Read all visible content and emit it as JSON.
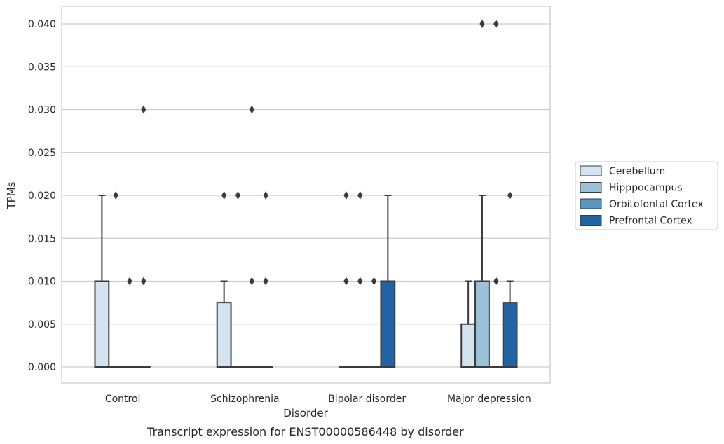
{
  "chart_data": {
    "type": "box",
    "caption": "Transcript expression for ENST00000586448 by disorder",
    "xlabel": "Disorder",
    "ylabel": "TPMs",
    "categories": [
      "Control",
      "Schizophrenia",
      "Bipolar disorder",
      "Major depression"
    ],
    "ylim": [
      -0.002,
      0.042
    ],
    "yticks": [
      0.0,
      0.005,
      0.01,
      0.015,
      0.02,
      0.025,
      0.03,
      0.035,
      0.04
    ],
    "ytick_labels": [
      "0.000",
      "0.005",
      "0.010",
      "0.015",
      "0.020",
      "0.025",
      "0.030",
      "0.035",
      "0.040"
    ],
    "grid": "horizontal",
    "legend_position": "right",
    "series": [
      {
        "name": "Cerebellum",
        "color": "#d4e3f0",
        "boxes": [
          {
            "q1": 0.0,
            "median": 0.0,
            "q3": 0.01,
            "whisker_low": 0.0,
            "whisker_high": 0.02,
            "outliers": []
          },
          {
            "q1": 0.0,
            "median": 0.0,
            "q3": 0.0075,
            "whisker_low": 0.0,
            "whisker_high": 0.01,
            "outliers": [
              0.02
            ]
          },
          {
            "q1": 0.0,
            "median": 0.0,
            "q3": 0.0,
            "whisker_low": 0.0,
            "whisker_high": 0.0,
            "outliers": [
              0.01,
              0.02
            ]
          },
          {
            "q1": 0.0,
            "median": 0.0,
            "q3": 0.005,
            "whisker_low": 0.0,
            "whisker_high": 0.01,
            "outliers": []
          }
        ]
      },
      {
        "name": "Hipppocampus",
        "color": "#9cc2d9",
        "boxes": [
          {
            "q1": 0.0,
            "median": 0.0,
            "q3": 0.0,
            "whisker_low": 0.0,
            "whisker_high": 0.0,
            "outliers": [
              0.02
            ]
          },
          {
            "q1": 0.0,
            "median": 0.0,
            "q3": 0.0,
            "whisker_low": 0.0,
            "whisker_high": 0.0,
            "outliers": [
              0.02
            ]
          },
          {
            "q1": 0.0,
            "median": 0.0,
            "q3": 0.0,
            "whisker_low": 0.0,
            "whisker_high": 0.0,
            "outliers": [
              0.01,
              0.02
            ]
          },
          {
            "q1": 0.0,
            "median": 0.0,
            "q3": 0.01,
            "whisker_low": 0.0,
            "whisker_high": 0.02,
            "outliers": [
              0.04
            ]
          }
        ]
      },
      {
        "name": "Orbitofontal Cortex",
        "color": "#5896c4",
        "boxes": [
          {
            "q1": 0.0,
            "median": 0.0,
            "q3": 0.0,
            "whisker_low": 0.0,
            "whisker_high": 0.0,
            "outliers": [
              0.01
            ]
          },
          {
            "q1": 0.0,
            "median": 0.0,
            "q3": 0.0,
            "whisker_low": 0.0,
            "whisker_high": 0.0,
            "outliers": [
              0.01,
              0.03
            ]
          },
          {
            "q1": 0.0,
            "median": 0.0,
            "q3": 0.0,
            "whisker_low": 0.0,
            "whisker_high": 0.0,
            "outliers": [
              0.01
            ]
          },
          {
            "q1": 0.0,
            "median": 0.0,
            "q3": 0.0,
            "whisker_low": 0.0,
            "whisker_high": 0.0,
            "outliers": [
              0.01,
              0.04
            ]
          }
        ]
      },
      {
        "name": "Prefrontal Cortex",
        "color": "#2463a1",
        "boxes": [
          {
            "q1": 0.0,
            "median": 0.0,
            "q3": 0.0,
            "whisker_low": 0.0,
            "whisker_high": 0.0,
            "outliers": [
              0.01,
              0.03
            ]
          },
          {
            "q1": 0.0,
            "median": 0.0,
            "q3": 0.0,
            "whisker_low": 0.0,
            "whisker_high": 0.0,
            "outliers": [
              0.01,
              0.02
            ]
          },
          {
            "q1": 0.0,
            "median": 0.0,
            "q3": 0.01,
            "whisker_low": 0.0,
            "whisker_high": 0.02,
            "outliers": []
          },
          {
            "q1": 0.0,
            "median": 0.0,
            "q3": 0.0075,
            "whisker_low": 0.0,
            "whisker_high": 0.01,
            "outliers": [
              0.02
            ]
          }
        ]
      }
    ]
  }
}
